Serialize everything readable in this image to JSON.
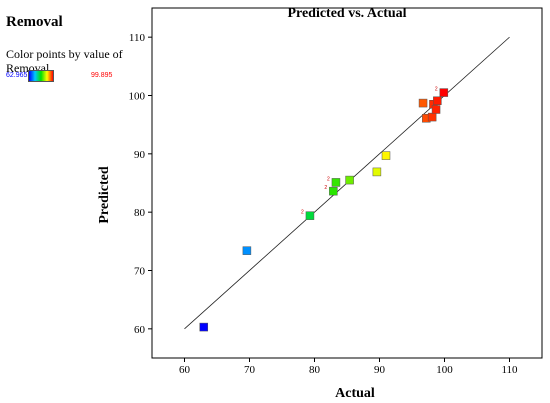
{
  "sidebar": {
    "title": "Removal",
    "description": "Color points by value of Removal",
    "legend_min": "62.965",
    "legend_max": "99.895"
  },
  "chart_data": {
    "type": "scatter",
    "title": "Predicted vs. Actual",
    "xlabel": "Actual",
    "ylabel": "Predicted",
    "xlim": [
      55,
      115
    ],
    "ylim": [
      55,
      115
    ],
    "x_ticks": [
      "60",
      "70",
      "80",
      "90",
      "100",
      "110"
    ],
    "y_ticks": [
      "60",
      "70",
      "80",
      "90",
      "100",
      "110"
    ],
    "reference_line": {
      "from": [
        60,
        60
      ],
      "to": [
        110,
        110
      ]
    },
    "grid": false,
    "color_scale": {
      "min": 62.965,
      "max": 99.895,
      "colors": [
        "#0000ff",
        "#00c8ff",
        "#00e000",
        "#ffff00",
        "#ff0000"
      ]
    },
    "points": [
      {
        "x": 62.965,
        "y": 60.3
      },
      {
        "x": 69.6,
        "y": 73.4
      },
      {
        "x": 79.3,
        "y": 79.4,
        "label": "2"
      },
      {
        "x": 82.9,
        "y": 83.6,
        "label": "2"
      },
      {
        "x": 83.3,
        "y": 85.1,
        "label": "2"
      },
      {
        "x": 85.4,
        "y": 85.5
      },
      {
        "x": 89.6,
        "y": 86.9
      },
      {
        "x": 91.0,
        "y": 89.7
      },
      {
        "x": 96.7,
        "y": 98.7
      },
      {
        "x": 97.2,
        "y": 96.1
      },
      {
        "x": 98.1,
        "y": 96.3
      },
      {
        "x": 98.3,
        "y": 98.5
      },
      {
        "x": 98.7,
        "y": 97.6
      },
      {
        "x": 98.9,
        "y": 99.1
      },
      {
        "x": 99.895,
        "y": 100.5,
        "label": "2"
      }
    ]
  }
}
